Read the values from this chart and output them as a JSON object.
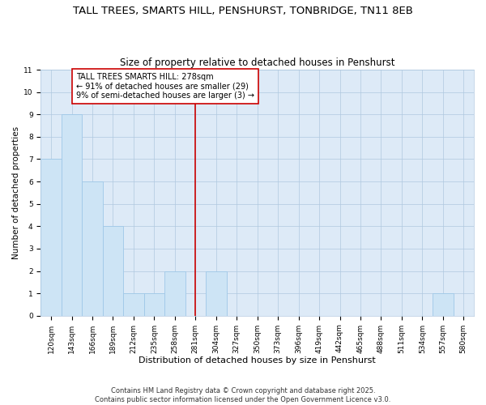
{
  "title1": "TALL TREES, SMARTS HILL, PENSHURST, TONBRIDGE, TN11 8EB",
  "title2": "Size of property relative to detached houses in Penshurst",
  "xlabel": "Distribution of detached houses by size in Penshurst",
  "ylabel": "Number of detached properties",
  "categories": [
    "120sqm",
    "143sqm",
    "166sqm",
    "189sqm",
    "212sqm",
    "235sqm",
    "258sqm",
    "281sqm",
    "304sqm",
    "327sqm",
    "350sqm",
    "373sqm",
    "396sqm",
    "419sqm",
    "442sqm",
    "465sqm",
    "488sqm",
    "511sqm",
    "534sqm",
    "557sqm",
    "580sqm"
  ],
  "values": [
    7,
    9,
    6,
    4,
    1,
    1,
    2,
    0,
    2,
    0,
    0,
    0,
    0,
    0,
    0,
    0,
    0,
    0,
    0,
    1,
    0
  ],
  "bar_color": "#cde4f5",
  "bar_edge_color": "#9fc8e8",
  "bar_width": 1.0,
  "ylim": [
    0,
    11
  ],
  "yticks": [
    0,
    1,
    2,
    3,
    4,
    5,
    6,
    7,
    8,
    9,
    10,
    11
  ],
  "grid_color": "#b0c8e0",
  "background_color": "#ddeaf7",
  "vline_x_index": 7,
  "vline_color": "#cc0000",
  "annotation_text": "TALL TREES SMARTS HILL: 278sqm\n← 91% of detached houses are smaller (29)\n9% of semi-detached houses are larger (3) →",
  "annotation_box_color": "#ffffff",
  "annotation_border_color": "#cc0000",
  "footer": "Contains HM Land Registry data © Crown copyright and database right 2025.\nContains public sector information licensed under the Open Government Licence v3.0.",
  "title1_fontsize": 9.5,
  "title2_fontsize": 8.5,
  "xlabel_fontsize": 8,
  "ylabel_fontsize": 7.5,
  "tick_fontsize": 6.5,
  "annotation_fontsize": 7,
  "footer_fontsize": 6
}
